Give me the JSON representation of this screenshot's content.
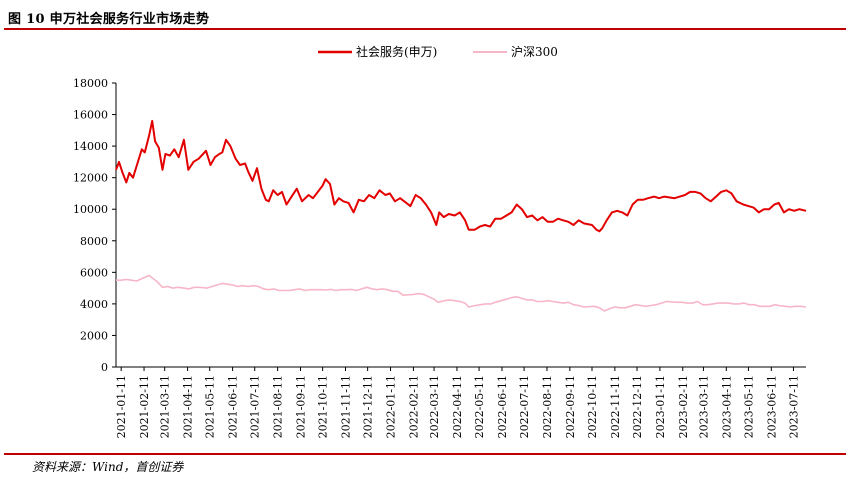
{
  "figure": {
    "title": "图 10 申万社会服务行业市场走势",
    "source": "资料来源：Wind，首创证券"
  },
  "chart_data": {
    "type": "line",
    "title": "",
    "xlabel": "",
    "ylabel": "",
    "ylim": [
      0,
      18000
    ],
    "yticks": [
      0,
      2000,
      4000,
      6000,
      8000,
      10000,
      12000,
      14000,
      16000,
      18000
    ],
    "xticks": [
      "2021-01-11",
      "2021-02-11",
      "2021-03-11",
      "2021-04-11",
      "2021-05-11",
      "2021-06-11",
      "2021-07-11",
      "2021-08-11",
      "2021-09-11",
      "2021-10-11",
      "2021-11-11",
      "2021-12-11",
      "2022-01-11",
      "2022-02-11",
      "2022-03-11",
      "2022-04-11",
      "2022-05-11",
      "2022-06-11",
      "2022-07-11",
      "2022-08-11",
      "2022-09-11",
      "2022-10-11",
      "2022-11-11",
      "2022-12-11",
      "2023-01-11",
      "2023-02-11",
      "2023-03-11",
      "2023-04-11",
      "2023-05-11",
      "2023-06-11",
      "2023-07-11"
    ],
    "xlim": [
      "2021-01-04",
      "2023-07-28"
    ],
    "grid": false,
    "legend": "top-center",
    "series": [
      {
        "name": "社会服务(申万)",
        "color": "#e30000",
        "points": [
          [
            "2021-01-04",
            12500
          ],
          [
            "2021-01-08",
            13000
          ],
          [
            "2021-01-13",
            12300
          ],
          [
            "2021-01-18",
            11700
          ],
          [
            "2021-01-22",
            12300
          ],
          [
            "2021-01-27",
            12000
          ],
          [
            "2021-02-02",
            12900
          ],
          [
            "2021-02-08",
            13800
          ],
          [
            "2021-02-12",
            13600
          ],
          [
            "2021-02-18",
            14700
          ],
          [
            "2021-02-22",
            15600
          ],
          [
            "2021-02-26",
            14300
          ],
          [
            "2021-03-03",
            13900
          ],
          [
            "2021-03-08",
            12500
          ],
          [
            "2021-03-12",
            13500
          ],
          [
            "2021-03-18",
            13400
          ],
          [
            "2021-03-24",
            13800
          ],
          [
            "2021-03-30",
            13300
          ],
          [
            "2021-04-06",
            14400
          ],
          [
            "2021-04-12",
            12500
          ],
          [
            "2021-04-19",
            13000
          ],
          [
            "2021-04-26",
            13200
          ],
          [
            "2021-05-06",
            13700
          ],
          [
            "2021-05-12",
            12800
          ],
          [
            "2021-05-18",
            13300
          ],
          [
            "2021-05-24",
            13500
          ],
          [
            "2021-05-28",
            13600
          ],
          [
            "2021-06-02",
            14400
          ],
          [
            "2021-06-08",
            14000
          ],
          [
            "2021-06-15",
            13200
          ],
          [
            "2021-06-21",
            12800
          ],
          [
            "2021-06-28",
            12900
          ],
          [
            "2021-07-02",
            12400
          ],
          [
            "2021-07-08",
            11800
          ],
          [
            "2021-07-14",
            12600
          ],
          [
            "2021-07-20",
            11300
          ],
          [
            "2021-07-26",
            10600
          ],
          [
            "2021-07-30",
            10500
          ],
          [
            "2021-08-05",
            11200
          ],
          [
            "2021-08-11",
            10900
          ],
          [
            "2021-08-17",
            11100
          ],
          [
            "2021-08-23",
            10300
          ],
          [
            "2021-08-30",
            10800
          ],
          [
            "2021-09-06",
            11300
          ],
          [
            "2021-09-13",
            10500
          ],
          [
            "2021-09-22",
            10900
          ],
          [
            "2021-09-28",
            10700
          ],
          [
            "2021-10-11",
            11500
          ],
          [
            "2021-10-15",
            11900
          ],
          [
            "2021-10-21",
            11600
          ],
          [
            "2021-10-27",
            10300
          ],
          [
            "2021-11-02",
            10700
          ],
          [
            "2021-11-08",
            10500
          ],
          [
            "2021-11-15",
            10400
          ],
          [
            "2021-11-22",
            9800
          ],
          [
            "2021-11-29",
            10600
          ],
          [
            "2021-12-06",
            10500
          ],
          [
            "2021-12-13",
            10900
          ],
          [
            "2021-12-20",
            10700
          ],
          [
            "2021-12-27",
            11200
          ],
          [
            "2022-01-04",
            10900
          ],
          [
            "2022-01-10",
            11000
          ],
          [
            "2022-01-17",
            10500
          ],
          [
            "2022-01-24",
            10700
          ],
          [
            "2022-02-07",
            10200
          ],
          [
            "2022-02-14",
            10900
          ],
          [
            "2022-02-21",
            10700
          ],
          [
            "2022-02-28",
            10300
          ],
          [
            "2022-03-07",
            9800
          ],
          [
            "2022-03-14",
            9000
          ],
          [
            "2022-03-18",
            9800
          ],
          [
            "2022-03-24",
            9500
          ],
          [
            "2022-03-31",
            9700
          ],
          [
            "2022-04-08",
            9600
          ],
          [
            "2022-04-15",
            9800
          ],
          [
            "2022-04-22",
            9300
          ],
          [
            "2022-04-27",
            8700
          ],
          [
            "2022-05-05",
            8700
          ],
          [
            "2022-05-12",
            8900
          ],
          [
            "2022-05-19",
            9000
          ],
          [
            "2022-05-26",
            8900
          ],
          [
            "2022-06-02",
            9400
          ],
          [
            "2022-06-10",
            9400
          ],
          [
            "2022-06-17",
            9600
          ],
          [
            "2022-06-24",
            9800
          ],
          [
            "2022-07-01",
            10300
          ],
          [
            "2022-07-08",
            10000
          ],
          [
            "2022-07-15",
            9500
          ],
          [
            "2022-07-22",
            9600
          ],
          [
            "2022-07-29",
            9300
          ],
          [
            "2022-08-05",
            9500
          ],
          [
            "2022-08-12",
            9200
          ],
          [
            "2022-08-19",
            9200
          ],
          [
            "2022-08-26",
            9400
          ],
          [
            "2022-09-02",
            9300
          ],
          [
            "2022-09-09",
            9200
          ],
          [
            "2022-09-16",
            9000
          ],
          [
            "2022-09-23",
            9300
          ],
          [
            "2022-09-30",
            9100
          ],
          [
            "2022-10-11",
            9000
          ],
          [
            "2022-10-17",
            8700
          ],
          [
            "2022-10-21",
            8600
          ],
          [
            "2022-10-25",
            8800
          ],
          [
            "2022-10-31",
            9300
          ],
          [
            "2022-11-07",
            9800
          ],
          [
            "2022-11-14",
            9900
          ],
          [
            "2022-11-21",
            9800
          ],
          [
            "2022-11-28",
            9600
          ],
          [
            "2022-12-05",
            10300
          ],
          [
            "2022-12-12",
            10600
          ],
          [
            "2022-12-19",
            10600
          ],
          [
            "2022-12-26",
            10700
          ],
          [
            "2023-01-03",
            10800
          ],
          [
            "2023-01-10",
            10700
          ],
          [
            "2023-01-17",
            10800
          ],
          [
            "2023-01-31",
            10700
          ],
          [
            "2023-02-07",
            10800
          ],
          [
            "2023-02-14",
            10900
          ],
          [
            "2023-02-21",
            11100
          ],
          [
            "2023-02-28",
            11100
          ],
          [
            "2023-03-07",
            11000
          ],
          [
            "2023-03-14",
            10700
          ],
          [
            "2023-03-21",
            10500
          ],
          [
            "2023-03-28",
            10800
          ],
          [
            "2023-04-04",
            11100
          ],
          [
            "2023-04-11",
            11200
          ],
          [
            "2023-04-18",
            11000
          ],
          [
            "2023-04-25",
            10500
          ],
          [
            "2023-05-04",
            10300
          ],
          [
            "2023-05-11",
            10200
          ],
          [
            "2023-05-18",
            10100
          ],
          [
            "2023-05-25",
            9800
          ],
          [
            "2023-06-01",
            10000
          ],
          [
            "2023-06-08",
            10000
          ],
          [
            "2023-06-15",
            10300
          ],
          [
            "2023-06-21",
            10400
          ],
          [
            "2023-06-28",
            9800
          ],
          [
            "2023-07-05",
            10000
          ],
          [
            "2023-07-12",
            9900
          ],
          [
            "2023-07-19",
            10000
          ],
          [
            "2023-07-28",
            9900
          ]
        ]
      },
      {
        "name": "沪深300",
        "color": "#f7b6c8",
        "points": [
          [
            "2021-01-04",
            5500
          ],
          [
            "2021-01-11",
            5500
          ],
          [
            "2021-01-18",
            5550
          ],
          [
            "2021-01-25",
            5500
          ],
          [
            "2021-02-01",
            5450
          ],
          [
            "2021-02-08",
            5600
          ],
          [
            "2021-02-18",
            5800
          ],
          [
            "2021-02-22",
            5650
          ],
          [
            "2021-03-01",
            5400
          ],
          [
            "2021-03-08",
            5050
          ],
          [
            "2021-03-15",
            5100
          ],
          [
            "2021-03-22",
            5000
          ],
          [
            "2021-03-29",
            5050
          ],
          [
            "2021-04-06",
            5000
          ],
          [
            "2021-04-13",
            4950
          ],
          [
            "2021-04-20",
            5050
          ],
          [
            "2021-04-27",
            5050
          ],
          [
            "2021-05-07",
            5000
          ],
          [
            "2021-05-14",
            5100
          ],
          [
            "2021-05-21",
            5200
          ],
          [
            "2021-05-28",
            5300
          ],
          [
            "2021-06-04",
            5250
          ],
          [
            "2021-06-11",
            5200
          ],
          [
            "2021-06-18",
            5100
          ],
          [
            "2021-06-25",
            5150
          ],
          [
            "2021-07-02",
            5100
          ],
          [
            "2021-07-09",
            5150
          ],
          [
            "2021-07-16",
            5100
          ],
          [
            "2021-07-23",
            4950
          ],
          [
            "2021-07-30",
            4900
          ],
          [
            "2021-08-06",
            4950
          ],
          [
            "2021-08-13",
            4850
          ],
          [
            "2021-08-20",
            4850
          ],
          [
            "2021-08-27",
            4850
          ],
          [
            "2021-09-03",
            4900
          ],
          [
            "2021-09-10",
            4950
          ],
          [
            "2021-09-17",
            4850
          ],
          [
            "2021-09-24",
            4900
          ],
          [
            "2021-10-08",
            4900
          ],
          [
            "2021-10-15",
            4880
          ],
          [
            "2021-10-22",
            4920
          ],
          [
            "2021-10-29",
            4850
          ],
          [
            "2021-11-05",
            4900
          ],
          [
            "2021-11-12",
            4900
          ],
          [
            "2021-11-19",
            4920
          ],
          [
            "2021-11-26",
            4850
          ],
          [
            "2021-12-03",
            4950
          ],
          [
            "2021-12-10",
            5050
          ],
          [
            "2021-12-17",
            4950
          ],
          [
            "2021-12-24",
            4900
          ],
          [
            "2021-12-31",
            4950
          ],
          [
            "2022-01-07",
            4900
          ],
          [
            "2022-01-14",
            4800
          ],
          [
            "2022-01-21",
            4800
          ],
          [
            "2022-01-28",
            4550
          ],
          [
            "2022-02-11",
            4600
          ],
          [
            "2022-02-18",
            4650
          ],
          [
            "2022-02-25",
            4600
          ],
          [
            "2022-03-04",
            4450
          ],
          [
            "2022-03-11",
            4300
          ],
          [
            "2022-03-16",
            4100
          ],
          [
            "2022-03-25",
            4200
          ],
          [
            "2022-04-01",
            4250
          ],
          [
            "2022-04-08",
            4200
          ],
          [
            "2022-04-15",
            4150
          ],
          [
            "2022-04-22",
            4050
          ],
          [
            "2022-04-27",
            3800
          ],
          [
            "2022-05-06",
            3900
          ],
          [
            "2022-05-13",
            3950
          ],
          [
            "2022-05-20",
            4000
          ],
          [
            "2022-05-27",
            4000
          ],
          [
            "2022-06-02",
            4100
          ],
          [
            "2022-06-10",
            4200
          ],
          [
            "2022-06-17",
            4300
          ],
          [
            "2022-06-24",
            4400
          ],
          [
            "2022-07-01",
            4450
          ],
          [
            "2022-07-08",
            4350
          ],
          [
            "2022-07-15",
            4250
          ],
          [
            "2022-07-22",
            4250
          ],
          [
            "2022-07-29",
            4150
          ],
          [
            "2022-08-05",
            4150
          ],
          [
            "2022-08-12",
            4200
          ],
          [
            "2022-08-19",
            4150
          ],
          [
            "2022-08-26",
            4100
          ],
          [
            "2022-09-02",
            4050
          ],
          [
            "2022-09-09",
            4100
          ],
          [
            "2022-09-16",
            3950
          ],
          [
            "2022-09-23",
            3900
          ],
          [
            "2022-09-30",
            3800
          ],
          [
            "2022-10-14",
            3850
          ],
          [
            "2022-10-21",
            3750
          ],
          [
            "2022-10-28",
            3550
          ],
          [
            "2022-11-04",
            3700
          ],
          [
            "2022-11-11",
            3800
          ],
          [
            "2022-11-18",
            3750
          ],
          [
            "2022-11-25",
            3750
          ],
          [
            "2022-12-02",
            3850
          ],
          [
            "2022-12-09",
            3950
          ],
          [
            "2022-12-16",
            3900
          ],
          [
            "2022-12-23",
            3850
          ],
          [
            "2022-12-30",
            3900
          ],
          [
            "2023-01-06",
            3950
          ],
          [
            "2023-01-13",
            4050
          ],
          [
            "2023-01-20",
            4150
          ],
          [
            "2023-02-03",
            4100
          ],
          [
            "2023-02-10",
            4100
          ],
          [
            "2023-02-17",
            4050
          ],
          [
            "2023-02-24",
            4050
          ],
          [
            "2023-03-03",
            4150
          ],
          [
            "2023-03-10",
            3950
          ],
          [
            "2023-03-17",
            3950
          ],
          [
            "2023-03-24",
            4000
          ],
          [
            "2023-03-31",
            4050
          ],
          [
            "2023-04-07",
            4050
          ],
          [
            "2023-04-14",
            4050
          ],
          [
            "2023-04-21",
            4000
          ],
          [
            "2023-04-28",
            4000
          ],
          [
            "2023-05-05",
            4050
          ],
          [
            "2023-05-12",
            3950
          ],
          [
            "2023-05-19",
            3950
          ],
          [
            "2023-05-26",
            3850
          ],
          [
            "2023-06-02",
            3850
          ],
          [
            "2023-06-09",
            3850
          ],
          [
            "2023-06-16",
            3950
          ],
          [
            "2023-06-21",
            3900
          ],
          [
            "2023-06-30",
            3850
          ],
          [
            "2023-07-07",
            3800
          ],
          [
            "2023-07-14",
            3850
          ],
          [
            "2023-07-21",
            3850
          ],
          [
            "2023-07-28",
            3800
          ]
        ]
      }
    ]
  }
}
